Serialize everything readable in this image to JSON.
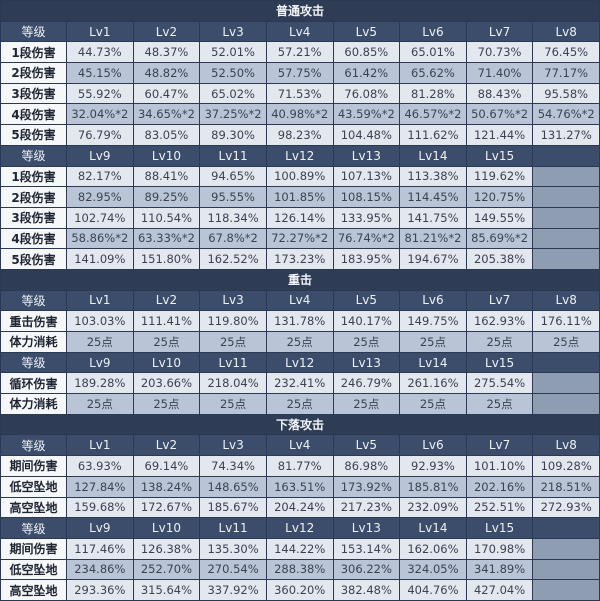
{
  "colors": {
    "title_bg": "#2e3d55",
    "header_bg": "#3b4d6a",
    "cell_light": "#e3e8ef",
    "cell_dark": "#b9c5d6",
    "label_bg": "#f6f7f9"
  },
  "sections": [
    {
      "title": "普通攻击",
      "blocks": [
        {
          "header": [
            "等级",
            "Lv1",
            "Lv2",
            "Lv3",
            "Lv4",
            "Lv5",
            "Lv6",
            "Lv7",
            "Lv8"
          ],
          "rows": [
            [
              "1段伤害",
              "44.73%",
              "48.37%",
              "52.01%",
              "57.21%",
              "60.85%",
              "65.01%",
              "70.73%",
              "76.45%"
            ],
            [
              "2段伤害",
              "45.15%",
              "48.82%",
              "52.50%",
              "57.75%",
              "61.42%",
              "65.62%",
              "71.40%",
              "77.17%"
            ],
            [
              "3段伤害",
              "55.92%",
              "60.47%",
              "65.02%",
              "71.53%",
              "76.08%",
              "81.28%",
              "88.43%",
              "95.58%"
            ],
            [
              "4段伤害",
              "32.04%*2",
              "34.65%*2",
              "37.25%*2",
              "40.98%*2",
              "43.59%*2",
              "46.57%*2",
              "50.67%*2",
              "54.76%*2"
            ],
            [
              "5段伤害",
              "76.79%",
              "83.05%",
              "89.30%",
              "98.23%",
              "104.48%",
              "111.62%",
              "121.44%",
              "131.27%"
            ]
          ]
        },
        {
          "header": [
            "等级",
            "Lv9",
            "Lv10",
            "Lv11",
            "Lv12",
            "Lv13",
            "Lv14",
            "Lv15",
            ""
          ],
          "rows": [
            [
              "1段伤害",
              "82.17%",
              "88.41%",
              "94.65%",
              "100.89%",
              "107.13%",
              "113.38%",
              "119.62%",
              ""
            ],
            [
              "2段伤害",
              "82.95%",
              "89.25%",
              "95.55%",
              "101.85%",
              "108.15%",
              "114.45%",
              "120.75%",
              ""
            ],
            [
              "3段伤害",
              "102.74%",
              "110.54%",
              "118.34%",
              "126.14%",
              "133.95%",
              "141.75%",
              "149.55%",
              ""
            ],
            [
              "4段伤害",
              "58.86%*2",
              "63.33%*2",
              "67.8%*2",
              "72.27%*2",
              "76.74%*2",
              "81.21%*2",
              "85.69%*2",
              ""
            ],
            [
              "5段伤害",
              "141.09%",
              "151.80%",
              "162.52%",
              "173.23%",
              "183.95%",
              "194.67%",
              "205.38%",
              ""
            ]
          ]
        }
      ]
    },
    {
      "title": "重击",
      "blocks": [
        {
          "header": [
            "等级",
            "Lv1",
            "Lv2",
            "Lv3",
            "Lv4",
            "Lv5",
            "Lv6",
            "Lv7",
            "Lv8"
          ],
          "rows": [
            [
              "重击伤害",
              "103.03%",
              "111.41%",
              "119.80%",
              "131.78%",
              "140.17%",
              "149.75%",
              "162.93%",
              "176.11%"
            ],
            [
              "体力消耗",
              "25点",
              "25点",
              "25点",
              "25点",
              "25点",
              "25点",
              "25点",
              "25点"
            ]
          ]
        },
        {
          "header": [
            "等级",
            "Lv9",
            "Lv10",
            "Lv11",
            "Lv12",
            "Lv13",
            "Lv14",
            "Lv15",
            ""
          ],
          "rows": [
            [
              "循环伤害",
              "189.28%",
              "203.66%",
              "218.04%",
              "232.41%",
              "246.79%",
              "261.16%",
              "275.54%",
              ""
            ],
            [
              "体力消耗",
              "25点",
              "25点",
              "25点",
              "25点",
              "25点",
              "25点",
              "25点",
              ""
            ]
          ]
        }
      ]
    },
    {
      "title": "下落攻击",
      "blocks": [
        {
          "header": [
            "等级",
            "Lv1",
            "Lv2",
            "Lv3",
            "Lv4",
            "Lv5",
            "Lv6",
            "Lv7",
            "Lv8"
          ],
          "rows": [
            [
              "期间伤害",
              "63.93%",
              "69.14%",
              "74.34%",
              "81.77%",
              "86.98%",
              "92.93%",
              "101.10%",
              "109.28%"
            ],
            [
              "低空坠地",
              "127.84%",
              "138.24%",
              "148.65%",
              "163.51%",
              "173.92%",
              "185.81%",
              "202.16%",
              "218.51%"
            ],
            [
              "高空坠地",
              "159.68%",
              "172.67%",
              "185.67%",
              "204.24%",
              "217.23%",
              "232.09%",
              "252.51%",
              "272.93%"
            ]
          ]
        },
        {
          "header": [
            "等级",
            "Lv9",
            "Lv10",
            "Lv11",
            "Lv12",
            "Lv13",
            "Lv14",
            "Lv15",
            ""
          ],
          "rows": [
            [
              "期间伤害",
              "117.46%",
              "126.38%",
              "135.30%",
              "144.22%",
              "153.14%",
              "162.06%",
              "170.98%",
              ""
            ],
            [
              "低空坠地",
              "234.86%",
              "252.70%",
              "270.54%",
              "288.38%",
              "306.22%",
              "324.05%",
              "341.89%",
              ""
            ],
            [
              "高空坠地",
              "293.36%",
              "315.64%",
              "337.92%",
              "360.20%",
              "382.48%",
              "404.76%",
              "427.04%",
              ""
            ]
          ]
        }
      ]
    }
  ]
}
